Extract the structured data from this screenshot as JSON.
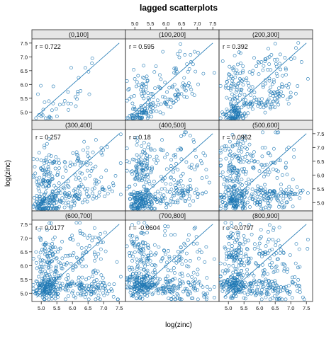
{
  "chart_data": {
    "type": "scatter",
    "title": "lagged scatterplots",
    "xlabel": "log(zinc)",
    "ylabel": "log(zinc)",
    "xlim": [
      4.7,
      7.7
    ],
    "ylim": [
      4.7,
      7.65
    ],
    "x_ticks": [
      "5.0",
      "5.5",
      "6.0",
      "6.5",
      "7.0",
      "7.5"
    ],
    "y_ticks": [
      "5.0",
      "5.5",
      "6.0",
      "6.5",
      "7.0",
      "7.5"
    ],
    "layout": "3x3",
    "grid": false,
    "panels": [
      {
        "strip": "(0,100]",
        "r_text": "r = 0.722",
        "r": 0.722,
        "n": 40
      },
      {
        "strip": "(100,200]",
        "r_text": "r = 0.595",
        "r": 0.595,
        "n": 200
      },
      {
        "strip": "(200,300]",
        "r_text": "r = 0.392",
        "r": 0.392,
        "n": 300
      },
      {
        "strip": "(300,400]",
        "r_text": "r = 0.257",
        "r": 0.257,
        "n": 360
      },
      {
        "strip": "(400,500]",
        "r_text": "r = 0.18",
        "r": 0.18,
        "n": 400
      },
      {
        "strip": "(500,600]",
        "r_text": "r = 0.0962",
        "r": 0.0962,
        "n": 420
      },
      {
        "strip": "(600,700]",
        "r_text": "r = 0.0177",
        "r": 0.0177,
        "n": 440
      },
      {
        "strip": "(700,800]",
        "r_text": "r = -0.0604",
        "r": -0.0604,
        "n": 440
      },
      {
        "strip": "(800,900]",
        "r_text": "r = -0.0797",
        "r": -0.0797,
        "n": 440
      }
    ],
    "point_color": "#1f78b4",
    "line_color": "#1f78b4",
    "strip_color": "#e6e6e6"
  }
}
